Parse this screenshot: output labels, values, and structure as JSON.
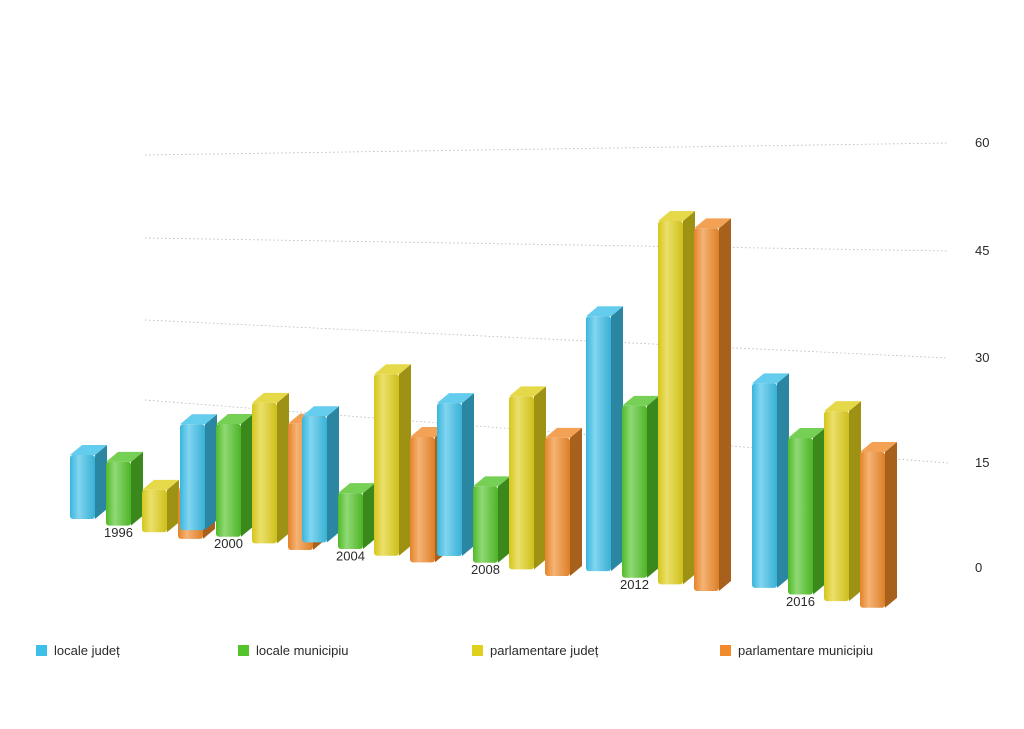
{
  "chart_data": {
    "type": "bar",
    "categories": [
      "1996",
      "2000",
      "2004",
      "2008",
      "2012",
      "2016"
    ],
    "series": [
      {
        "name": "locale județ",
        "values": [
          9,
          15,
          18,
          22,
          37,
          30
        ]
      },
      {
        "name": "locale municipiu",
        "values": [
          9,
          16,
          8,
          11,
          25,
          23
        ]
      },
      {
        "name": "parlamentare județ",
        "values": [
          6,
          20,
          26,
          25,
          53,
          28
        ]
      },
      {
        "name": "parlamentare municipiu",
        "values": [
          7,
          18,
          18,
          20,
          53,
          23
        ]
      }
    ],
    "series_colors": [
      "#3dbfe8",
      "#54c42a",
      "#e0d01c",
      "#f08a2a"
    ],
    "yticks": [
      "60",
      "45",
      "30",
      "15",
      "0"
    ],
    "ylim": [
      0,
      60
    ],
    "grid": true,
    "legend_position": "bottom",
    "title": "",
    "xlabel": "",
    "ylabel": ""
  }
}
